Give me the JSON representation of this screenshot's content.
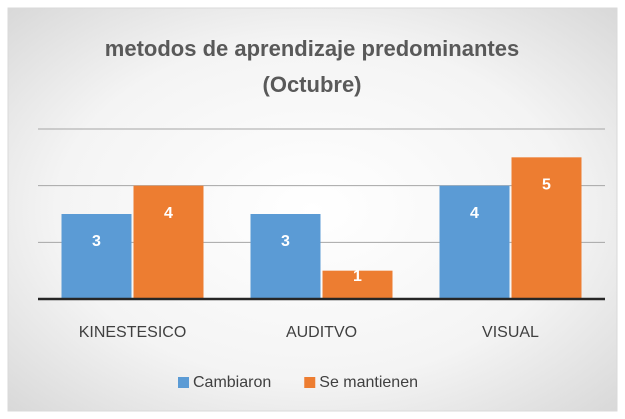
{
  "chart_data": {
    "type": "bar",
    "title": [
      "metodos de aprendizaje predominantes",
      "(Octubre)"
    ],
    "categories": [
      "KINESTESICO",
      "AUDITVO",
      "VISUAL"
    ],
    "series": [
      {
        "name": "Cambiaron",
        "color": "#5b9bd5",
        "values": [
          3,
          3,
          4
        ]
      },
      {
        "name": "Se mantienen",
        "color": "#ed7d31",
        "values": [
          4,
          1,
          5
        ]
      }
    ],
    "ylim": [
      0,
      6
    ],
    "yticks": [
      0,
      2,
      4,
      6
    ],
    "grid": true,
    "legend": "bottom"
  }
}
